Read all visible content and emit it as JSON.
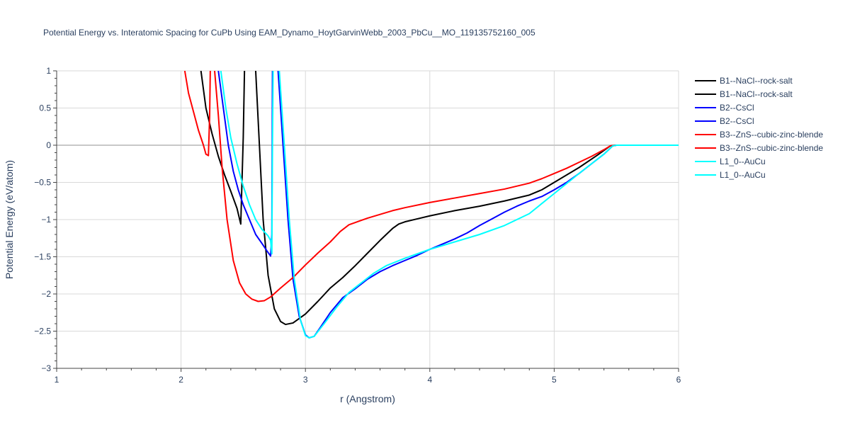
{
  "chart_data": {
    "type": "line",
    "title": "Potential Energy vs. Interatomic Spacing for CuPb Using EAM_Dynamo_HoytGarvinWebb_2003_PbCu__MO_119135752160_005",
    "xlabel": "r (Angstrom)",
    "ylabel": "Potential Energy (eV/atom)",
    "xlim": [
      1,
      6
    ],
    "ylim": [
      -3,
      1
    ],
    "x_ticks": [
      1,
      2,
      3,
      4,
      5,
      6
    ],
    "x_tick_labels": [
      "1",
      "2",
      "3",
      "4",
      "5",
      "6"
    ],
    "y_ticks": [
      -3,
      -2.5,
      -2,
      -1.5,
      -1,
      -0.5,
      0,
      0.5,
      1
    ],
    "y_tick_labels": [
      "−3",
      "−2.5",
      "−2",
      "−1.5",
      "−1",
      "−0.5",
      "0",
      "0.5",
      "1"
    ],
    "grid": true,
    "legend_position": "right",
    "series": [
      {
        "name": "B1--NaCl--rock-salt",
        "color": "#000000",
        "points": [
          [
            2.16,
            1.0
          ],
          [
            2.2,
            0.5
          ],
          [
            2.25,
            0.15
          ],
          [
            2.3,
            -0.15
          ],
          [
            2.35,
            -0.4
          ],
          [
            2.4,
            -0.62
          ],
          [
            2.45,
            -0.85
          ],
          [
            2.48,
            -1.06
          ],
          [
            2.5,
            0.1
          ],
          [
            2.51,
            1.0
          ]
        ]
      },
      {
        "name": "B1--NaCl--rock-salt",
        "color": "#000000",
        "points": [
          [
            2.6,
            1.0
          ],
          [
            2.63,
            0.0
          ],
          [
            2.66,
            -1.0
          ],
          [
            2.7,
            -1.75
          ],
          [
            2.75,
            -2.2
          ],
          [
            2.8,
            -2.37
          ],
          [
            2.84,
            -2.41
          ],
          [
            2.9,
            -2.39
          ],
          [
            3.0,
            -2.27
          ],
          [
            3.1,
            -2.1
          ],
          [
            3.2,
            -1.92
          ],
          [
            3.3,
            -1.78
          ],
          [
            3.4,
            -1.62
          ],
          [
            3.5,
            -1.45
          ],
          [
            3.6,
            -1.28
          ],
          [
            3.7,
            -1.12
          ],
          [
            3.75,
            -1.06
          ],
          [
            3.8,
            -1.03
          ],
          [
            3.9,
            -0.99
          ],
          [
            4.0,
            -0.95
          ],
          [
            4.2,
            -0.88
          ],
          [
            4.4,
            -0.82
          ],
          [
            4.6,
            -0.75
          ],
          [
            4.8,
            -0.67
          ],
          [
            4.9,
            -0.6
          ],
          [
            5.0,
            -0.5
          ],
          [
            5.2,
            -0.3
          ],
          [
            5.35,
            -0.13
          ],
          [
            5.45,
            -0.01
          ],
          [
            5.5,
            0.0
          ],
          [
            6.0,
            0.0
          ]
        ]
      },
      {
        "name": "B2--CsCl",
        "color": "#0000ff",
        "points": [
          [
            2.3,
            1.0
          ],
          [
            2.34,
            0.5
          ],
          [
            2.38,
            0.0
          ],
          [
            2.42,
            -0.35
          ],
          [
            2.46,
            -0.6
          ],
          [
            2.5,
            -0.8
          ],
          [
            2.55,
            -1.0
          ],
          [
            2.6,
            -1.2
          ],
          [
            2.65,
            -1.32
          ],
          [
            2.69,
            -1.42
          ],
          [
            2.72,
            -1.49
          ],
          [
            2.73,
            -1.2
          ],
          [
            2.735,
            1.0
          ]
        ]
      },
      {
        "name": "B2--CsCl",
        "color": "#0000ff",
        "points": [
          [
            2.78,
            1.0
          ],
          [
            2.82,
            0.0
          ],
          [
            2.86,
            -1.0
          ],
          [
            2.9,
            -1.8
          ],
          [
            2.95,
            -2.3
          ],
          [
            3.0,
            -2.55
          ],
          [
            3.03,
            -2.59
          ],
          [
            3.07,
            -2.57
          ],
          [
            3.12,
            -2.45
          ],
          [
            3.2,
            -2.25
          ],
          [
            3.3,
            -2.05
          ],
          [
            3.4,
            -1.93
          ],
          [
            3.5,
            -1.8
          ],
          [
            3.6,
            -1.7
          ],
          [
            3.7,
            -1.62
          ],
          [
            3.8,
            -1.55
          ],
          [
            3.9,
            -1.48
          ],
          [
            4.0,
            -1.4
          ],
          [
            4.1,
            -1.33
          ],
          [
            4.2,
            -1.26
          ],
          [
            4.3,
            -1.18
          ],
          [
            4.4,
            -1.08
          ],
          [
            4.5,
            -0.99
          ],
          [
            4.6,
            -0.9
          ],
          [
            4.7,
            -0.82
          ],
          [
            4.8,
            -0.75
          ],
          [
            4.9,
            -0.69
          ],
          [
            5.0,
            -0.6
          ],
          [
            5.1,
            -0.5
          ],
          [
            5.2,
            -0.38
          ],
          [
            5.3,
            -0.25
          ],
          [
            5.4,
            -0.12
          ],
          [
            5.47,
            -0.01
          ],
          [
            5.5,
            0.0
          ],
          [
            6.0,
            0.0
          ]
        ]
      },
      {
        "name": "B3--ZnS--cubic-zinc-blende",
        "color": "#ff0000",
        "points": [
          [
            2.03,
            1.0
          ],
          [
            2.06,
            0.7
          ],
          [
            2.1,
            0.45
          ],
          [
            2.14,
            0.2
          ],
          [
            2.18,
            0.0
          ],
          [
            2.2,
            -0.12
          ],
          [
            2.22,
            -0.14
          ],
          [
            2.23,
            0.4
          ],
          [
            2.235,
            1.0
          ]
        ]
      },
      {
        "name": "B3--ZnS--cubic-zinc-blende",
        "color": "#ff0000",
        "points": [
          [
            2.27,
            1.0
          ],
          [
            2.3,
            0.4
          ],
          [
            2.33,
            -0.3
          ],
          [
            2.37,
            -1.0
          ],
          [
            2.42,
            -1.55
          ],
          [
            2.47,
            -1.85
          ],
          [
            2.52,
            -2.0
          ],
          [
            2.57,
            -2.07
          ],
          [
            2.62,
            -2.1
          ],
          [
            2.67,
            -2.09
          ],
          [
            2.72,
            -2.04
          ],
          [
            2.8,
            -1.92
          ],
          [
            2.9,
            -1.78
          ],
          [
            3.0,
            -1.61
          ],
          [
            3.1,
            -1.45
          ],
          [
            3.2,
            -1.3
          ],
          [
            3.28,
            -1.16
          ],
          [
            3.35,
            -1.07
          ],
          [
            3.4,
            -1.04
          ],
          [
            3.5,
            -0.98
          ],
          [
            3.6,
            -0.93
          ],
          [
            3.7,
            -0.88
          ],
          [
            3.8,
            -0.84
          ],
          [
            4.0,
            -0.77
          ],
          [
            4.2,
            -0.71
          ],
          [
            4.4,
            -0.65
          ],
          [
            4.6,
            -0.59
          ],
          [
            4.8,
            -0.51
          ],
          [
            4.9,
            -0.45
          ],
          [
            5.0,
            -0.38
          ],
          [
            5.1,
            -0.31
          ],
          [
            5.2,
            -0.23
          ],
          [
            5.3,
            -0.15
          ],
          [
            5.4,
            -0.06
          ],
          [
            5.45,
            -0.01
          ],
          [
            5.5,
            0.0
          ],
          [
            6.0,
            0.0
          ]
        ]
      },
      {
        "name": "L1_0--AuCu",
        "color": "#00ffff",
        "points": [
          [
            2.32,
            1.0
          ],
          [
            2.36,
            0.5
          ],
          [
            2.4,
            0.1
          ],
          [
            2.45,
            -0.25
          ],
          [
            2.5,
            -0.55
          ],
          [
            2.55,
            -0.8
          ],
          [
            2.6,
            -1.0
          ],
          [
            2.65,
            -1.13
          ],
          [
            2.7,
            -1.22
          ],
          [
            2.72,
            -1.28
          ],
          [
            2.73,
            -1.46
          ],
          [
            2.735,
            0.0
          ],
          [
            2.74,
            1.0
          ]
        ]
      },
      {
        "name": "L1_0--AuCu",
        "color": "#00ffff",
        "points": [
          [
            2.79,
            1.0
          ],
          [
            2.83,
            0.0
          ],
          [
            2.87,
            -1.0
          ],
          [
            2.91,
            -1.8
          ],
          [
            2.96,
            -2.35
          ],
          [
            3.0,
            -2.56
          ],
          [
            3.03,
            -2.59
          ],
          [
            3.07,
            -2.57
          ],
          [
            3.15,
            -2.4
          ],
          [
            3.25,
            -2.18
          ],
          [
            3.35,
            -1.98
          ],
          [
            3.45,
            -1.85
          ],
          [
            3.55,
            -1.72
          ],
          [
            3.65,
            -1.62
          ],
          [
            3.8,
            -1.52
          ],
          [
            4.0,
            -1.4
          ],
          [
            4.2,
            -1.3
          ],
          [
            4.4,
            -1.2
          ],
          [
            4.6,
            -1.08
          ],
          [
            4.8,
            -0.92
          ],
          [
            5.0,
            -0.65
          ],
          [
            5.2,
            -0.38
          ],
          [
            5.3,
            -0.25
          ],
          [
            5.4,
            -0.12
          ],
          [
            5.47,
            -0.01
          ],
          [
            5.5,
            0.0
          ],
          [
            6.0,
            0.0
          ]
        ]
      }
    ]
  }
}
